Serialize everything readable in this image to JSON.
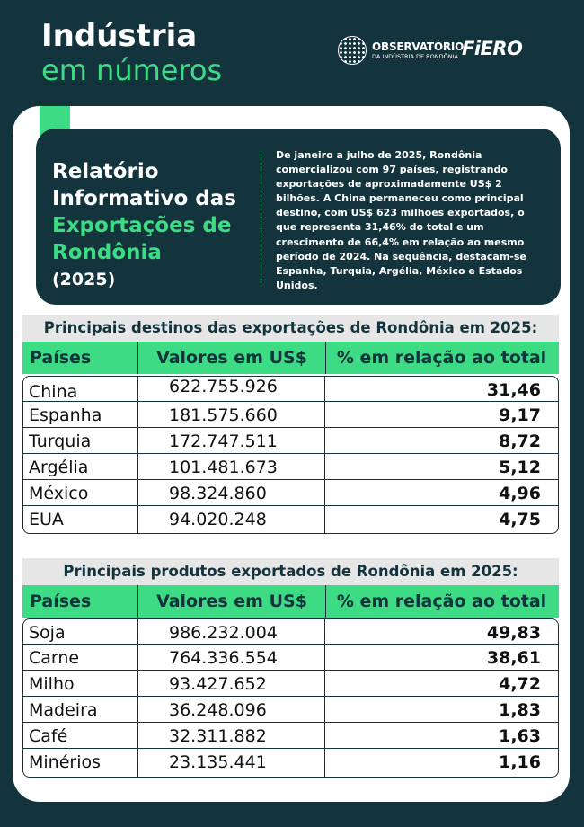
{
  "header": {
    "title": "Indústria",
    "subtitle": "em números"
  },
  "logos": {
    "observatorio_name": "OBSERVATÓRIO",
    "observatorio_sub": "DA INDÚSTRIA DE RONDÔNIA",
    "fiero": "FiERO"
  },
  "report": {
    "title_line1": "Relatório",
    "title_line2": "Informativo das",
    "title_line3": "Exportações de",
    "title_line4": "Rondônia",
    "title_year": "(2025)",
    "description": "De janeiro a julho de 2025, Rondônia comercializou com 97 países, registrando exportações de aproximadamente US$ 2 bilhões. A China permaneceu como principal destino, com US$ 623 milhões exportados, o que representa 31,46% do total e um crescimento de 66,4% em relação ao mesmo período de 2024. Na sequência, destacam-se Espanha, Turquia, Argélia, México e Estados Unidos."
  },
  "destinations": {
    "title": "Principais destinos das exportações de Rondônia em 2025:",
    "headers": {
      "name": "Países",
      "value": "Valores em US$",
      "pct": "% em relação ao total"
    },
    "rows": [
      {
        "name": "China",
        "value": "622.755.926",
        "pct": "31,46"
      },
      {
        "name": "Espanha",
        "value": "181.575.660",
        "pct": "9,17"
      },
      {
        "name": "Turquia",
        "value": "172.747.511",
        "pct": "8,72"
      },
      {
        "name": "Argélia",
        "value": "101.481.673",
        "pct": "5,12"
      },
      {
        "name": "México",
        "value": "98.324.860",
        "pct": "4,96"
      },
      {
        "name": "EUA",
        "value": "94.020.248",
        "pct": "4,75"
      }
    ]
  },
  "products": {
    "title": "Principais produtos exportados de Rondônia em 2025:",
    "headers": {
      "name": "Países",
      "value": "Valores em US$",
      "pct": "% em relação ao total"
    },
    "rows": [
      {
        "name": "Soja",
        "value": "986.232.004",
        "pct": "49,83"
      },
      {
        "name": "Carne",
        "value": "764.336.554",
        "pct": "38,61"
      },
      {
        "name": "Milho",
        "value": "93.427.652",
        "pct": "4,72"
      },
      {
        "name": "Madeira",
        "value": "36.248.096",
        "pct": "1,83"
      },
      {
        "name": "Café",
        "value": "32.311.882",
        "pct": "1,63"
      },
      {
        "name": "Minérios",
        "value": "23.135.441",
        "pct": "1,16"
      }
    ]
  }
}
